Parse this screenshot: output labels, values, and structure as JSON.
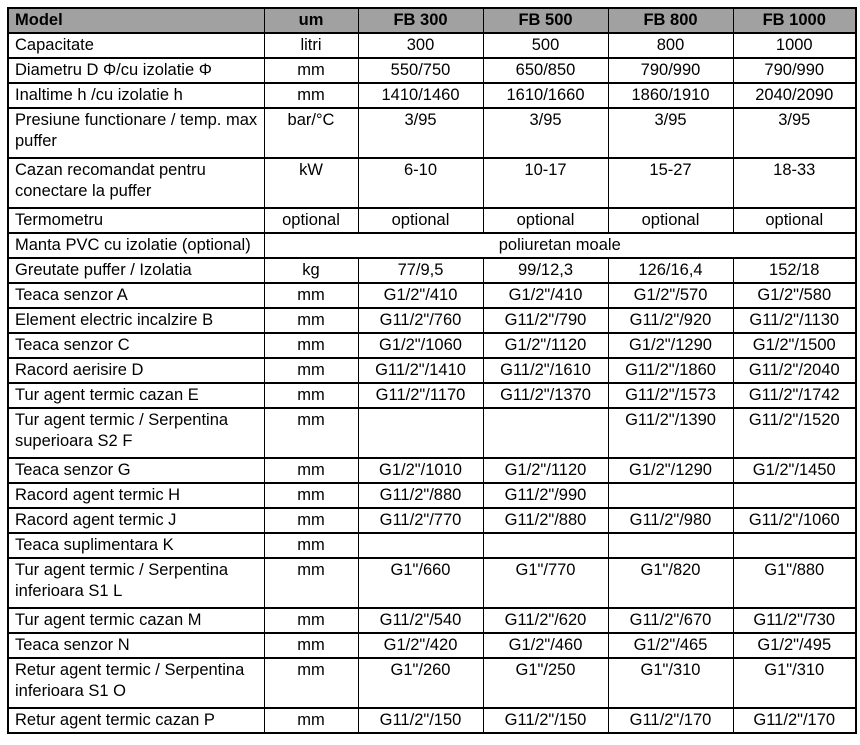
{
  "table": {
    "colors": {
      "header_bg": "#a1a1a1",
      "border": "#000000",
      "background": "#ffffff"
    },
    "header": {
      "model": "Model",
      "um": "um",
      "columns": [
        "FB 300",
        "FB 500",
        "FB 800",
        "FB 1000"
      ]
    },
    "rows": [
      {
        "label": "Capacitate",
        "um": "litri",
        "values": [
          "300",
          "500",
          "800",
          "1000"
        ]
      },
      {
        "label": "Diametru D Φ/cu izolatie Φ",
        "um": "mm",
        "values": [
          "550/750",
          "650/850",
          "790/990",
          "790/990"
        ]
      },
      {
        "label": "Inaltime h /cu izolatie h",
        "um": "mm",
        "values": [
          "1410/1460",
          "1610/1660",
          "1860/1910",
          "2040/2090"
        ]
      },
      {
        "label": "Presiune functionare / temp. max puffer",
        "um": "bar/°C",
        "values": [
          "3/95",
          "3/95",
          "3/95",
          "3/95"
        ],
        "tall": true
      },
      {
        "label": "Cazan recomandat pentru conectare la puffer",
        "um": "kW",
        "values": [
          "6-10",
          "10-17",
          "15-27",
          "18-33"
        ],
        "tall": true
      },
      {
        "label": "Termometru",
        "um": "optional",
        "values": [
          "optional",
          "optional",
          "optional",
          "optional"
        ]
      },
      {
        "label": "Manta PVC cu izolatie (optional)",
        "span": "poliuretan moale"
      },
      {
        "label": "Greutate puffer / Izolatia",
        "um": "kg",
        "values": [
          "77/9,5",
          "99/12,3",
          "126/16,4",
          "152/18"
        ]
      },
      {
        "label": "Teaca senzor A",
        "um": "mm",
        "values": [
          "G1/2\"/410",
          "G1/2\"/410",
          "G1/2\"/570",
          "G1/2\"/580"
        ]
      },
      {
        "label": "Element electric incalzire B",
        "um": "mm",
        "values": [
          "G11/2\"/760",
          "G11/2\"/790",
          "G11/2\"/920",
          "G11/2\"/1130"
        ]
      },
      {
        "label": "Teaca senzor C",
        "um": "mm",
        "values": [
          "G1/2\"/1060",
          "G1/2\"/1120",
          "G1/2\"/1290",
          "G1/2\"/1500"
        ]
      },
      {
        "label": "Racord aerisire D",
        "um": "mm",
        "values": [
          "G11/2\"/1410",
          "G11/2\"/1610",
          "G11/2\"/1860",
          "G11/2\"/2040"
        ]
      },
      {
        "label": "Tur agent termic cazan E",
        "um": "mm",
        "values": [
          "G11/2\"/1170",
          "G11/2\"/1370",
          "G11/2\"/1573",
          "G11/2\"/1742"
        ]
      },
      {
        "label": "Tur agent termic / Serpentina superioara S2 F",
        "um": "mm",
        "values": [
          "",
          "",
          "G11/2\"/1390",
          "G11/2\"/1520"
        ],
        "tall": true
      },
      {
        "label": "Teaca senzor G",
        "um": "mm",
        "values": [
          "G1/2\"/1010",
          "G1/2\"/1120",
          "G1/2\"/1290",
          "G1/2\"/1450"
        ]
      },
      {
        "label": "Racord agent termic H",
        "um": "mm",
        "values": [
          "G11/2\"/880",
          "G11/2\"/990",
          "",
          ""
        ]
      },
      {
        "label": "Racord agent termic J",
        "um": "mm",
        "values": [
          "G11/2\"/770",
          "G11/2\"/880",
          "G11/2\"/980",
          "G11/2\"/1060"
        ]
      },
      {
        "label": "Teaca suplimentara K",
        "um": "mm",
        "values": [
          "",
          "",
          "",
          ""
        ]
      },
      {
        "label": "Tur agent termic / Serpentina inferioara S1 L",
        "um": "mm",
        "values": [
          "G1\"/660",
          "G1\"/770",
          "G1\"/820",
          "G1\"/880"
        ],
        "tall": true
      },
      {
        "label": "Tur agent termic cazan M",
        "um": "mm",
        "values": [
          "G11/2\"/540",
          "G11/2\"/620",
          "G11/2\"/670",
          "G11/2\"/730"
        ]
      },
      {
        "label": "Teaca senzor N",
        "um": "mm",
        "values": [
          "G1/2\"/420",
          "G1/2\"/460",
          "G1/2\"/465",
          "G1/2\"/495"
        ]
      },
      {
        "label": "Retur agent termic / Serpentina inferioara S1 O",
        "um": "mm",
        "values": [
          "G1\"/260",
          "G1\"/250",
          "G1\"/310",
          "G1\"/310"
        ],
        "tall": true
      },
      {
        "label": "Retur agent termic cazan P",
        "um": "mm",
        "values": [
          "G11/2\"/150",
          "G11/2\"/150",
          "G11/2\"/170",
          "G11/2\"/170"
        ]
      }
    ]
  }
}
